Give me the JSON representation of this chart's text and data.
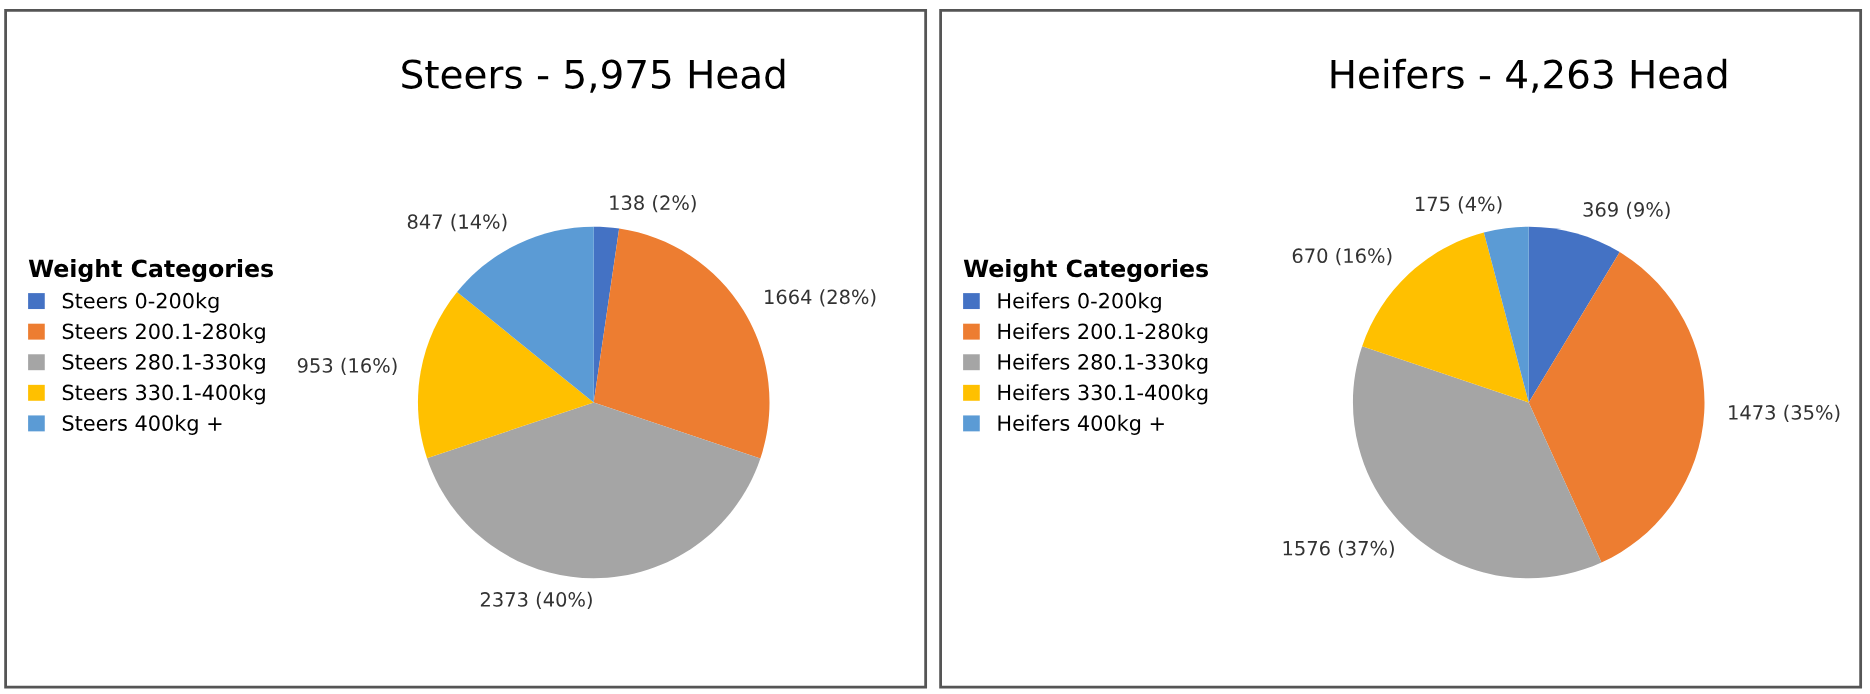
{
  "chart_data": [
    {
      "type": "pie",
      "title": "Steers - 5,975 Head",
      "legend_title": "Weight Categories",
      "legend": "left",
      "categories": [
        "Steers 0-200kg",
        "Steers 200.1-280kg",
        "Steers 280.1-330kg",
        "Steers 330.1-400kg",
        "Steers 400kg +"
      ],
      "values": [
        138,
        1664,
        2373,
        953,
        847
      ],
      "value_labels": [
        "138 (2%)",
        "1664 (28%)",
        "2373 (40%)",
        "953 (16%)",
        "847 (14%)"
      ],
      "colors": [
        "#4472c4",
        "#ed7d31",
        "#a5a5a5",
        "#ffc000",
        "#5b9bd5"
      ]
    },
    {
      "type": "pie",
      "title": "Heifers - 4,263 Head",
      "legend_title": "Weight Categories",
      "legend": "left",
      "categories": [
        "Heifers 0-200kg",
        "Heifers 200.1-280kg",
        "Heifers 280.1-330kg",
        "Heifers 330.1-400kg",
        "Heifers 400kg +"
      ],
      "values": [
        369,
        1473,
        1576,
        670,
        175
      ],
      "value_labels": [
        "369 (9%)",
        "1473 (35%)",
        "1576 (37%)",
        "670 (16%)",
        "175 (4%)"
      ],
      "colors": [
        "#4472c4",
        "#ed7d31",
        "#a5a5a5",
        "#ffc000",
        "#5b9bd5"
      ]
    }
  ]
}
